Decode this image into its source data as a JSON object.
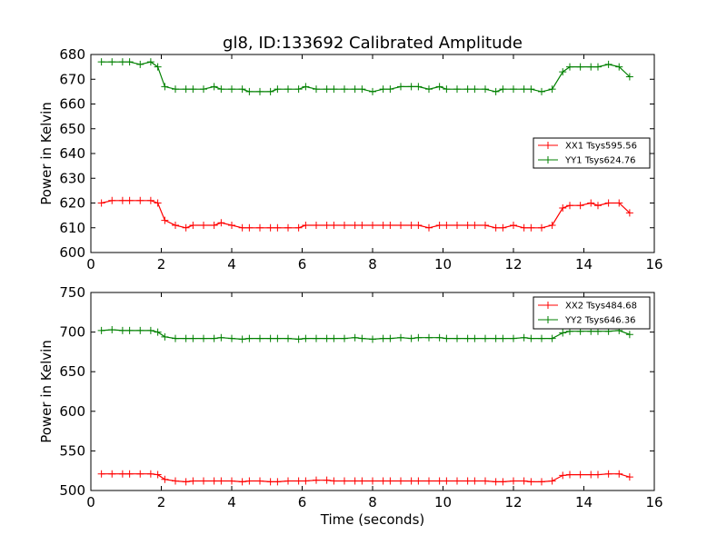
{
  "chart_data": [
    {
      "type": "line",
      "title": "gl8, ID:133692 Calibrated Amplitude",
      "xlabel": "",
      "ylabel": "Power in Kelvin",
      "xlim": [
        0,
        16
      ],
      "ylim": [
        600,
        680
      ],
      "xticks": [
        "0",
        "2",
        "4",
        "6",
        "8",
        "10",
        "12",
        "14",
        "16"
      ],
      "yticks": [
        "600",
        "610",
        "620",
        "630",
        "640",
        "650",
        "660",
        "670",
        "680"
      ],
      "legend_position": "center-right",
      "grid": false,
      "x": [
        0.3,
        0.6,
        0.9,
        1.1,
        1.4,
        1.7,
        1.9,
        2.1,
        2.4,
        2.7,
        2.9,
        3.2,
        3.5,
        3.7,
        4.0,
        4.3,
        4.5,
        4.8,
        5.1,
        5.3,
        5.6,
        5.9,
        6.1,
        6.4,
        6.7,
        6.9,
        7.2,
        7.5,
        7.7,
        8.0,
        8.3,
        8.5,
        8.8,
        9.1,
        9.3,
        9.6,
        9.9,
        10.1,
        10.4,
        10.7,
        10.9,
        11.2,
        11.5,
        11.7,
        12.0,
        12.3,
        12.5,
        12.8,
        13.1,
        13.4,
        13.6,
        13.9,
        14.2,
        14.4,
        14.7,
        15.0,
        15.3
      ],
      "series": [
        {
          "name": "XX1 Tsys595.56",
          "color": "#ff0000",
          "values": [
            620,
            621,
            621,
            621,
            621,
            621,
            620,
            613,
            611,
            610,
            611,
            611,
            611,
            612,
            611,
            610,
            610,
            610,
            610,
            610,
            610,
            610,
            611,
            611,
            611,
            611,
            611,
            611,
            611,
            611,
            611,
            611,
            611,
            611,
            611,
            610,
            611,
            611,
            611,
            611,
            611,
            611,
            610,
            610,
            611,
            610,
            610,
            610,
            611,
            618,
            619,
            619,
            620,
            619,
            620,
            620,
            616
          ]
        },
        {
          "name": "YY1 Tsys624.76",
          "color": "#008000",
          "values": [
            677,
            677,
            677,
            677,
            676,
            677,
            675,
            667,
            666,
            666,
            666,
            666,
            667,
            666,
            666,
            666,
            665,
            665,
            665,
            666,
            666,
            666,
            667,
            666,
            666,
            666,
            666,
            666,
            666,
            665,
            666,
            666,
            667,
            667,
            667,
            666,
            667,
            666,
            666,
            666,
            666,
            666,
            665,
            666,
            666,
            666,
            666,
            665,
            666,
            673,
            675,
            675,
            675,
            675,
            676,
            675,
            671
          ]
        }
      ]
    },
    {
      "type": "line",
      "title": "",
      "xlabel": "Time (seconds)",
      "ylabel": "Power in Kelvin",
      "xlim": [
        0,
        16
      ],
      "ylim": [
        500,
        750
      ],
      "xticks": [
        "0",
        "2",
        "4",
        "6",
        "8",
        "10",
        "12",
        "14",
        "16"
      ],
      "yticks": [
        "500",
        "550",
        "600",
        "650",
        "700",
        "750"
      ],
      "legend_position": "upper-right",
      "grid": false,
      "x": [
        0.3,
        0.6,
        0.9,
        1.1,
        1.4,
        1.7,
        1.9,
        2.1,
        2.4,
        2.7,
        2.9,
        3.2,
        3.5,
        3.7,
        4.0,
        4.3,
        4.5,
        4.8,
        5.1,
        5.3,
        5.6,
        5.9,
        6.1,
        6.4,
        6.7,
        6.9,
        7.2,
        7.5,
        7.7,
        8.0,
        8.3,
        8.5,
        8.8,
        9.1,
        9.3,
        9.6,
        9.9,
        10.1,
        10.4,
        10.7,
        10.9,
        11.2,
        11.5,
        11.7,
        12.0,
        12.3,
        12.5,
        12.8,
        13.1,
        13.4,
        13.6,
        13.9,
        14.2,
        14.4,
        14.7,
        15.0,
        15.3
      ],
      "series": [
        {
          "name": "XX2 Tsys484.68",
          "color": "#ff0000",
          "values": [
            521,
            521,
            521,
            521,
            521,
            521,
            520,
            514,
            512,
            511,
            512,
            512,
            512,
            512,
            512,
            511,
            512,
            512,
            511,
            511,
            512,
            512,
            512,
            513,
            513,
            512,
            512,
            512,
            512,
            512,
            512,
            512,
            512,
            512,
            512,
            512,
            512,
            512,
            512,
            512,
            512,
            512,
            511,
            511,
            512,
            512,
            511,
            511,
            512,
            519,
            520,
            520,
            520,
            520,
            521,
            521,
            517
          ]
        },
        {
          "name": "YY2 Tsys646.36",
          "color": "#008000",
          "values": [
            702,
            703,
            702,
            702,
            702,
            702,
            700,
            694,
            692,
            692,
            692,
            692,
            692,
            693,
            692,
            691,
            692,
            692,
            692,
            692,
            692,
            691,
            692,
            692,
            692,
            692,
            692,
            693,
            692,
            691,
            692,
            692,
            693,
            692,
            693,
            693,
            693,
            692,
            692,
            692,
            692,
            692,
            692,
            692,
            692,
            693,
            692,
            692,
            692,
            699,
            701,
            701,
            701,
            701,
            701,
            702,
            697
          ]
        }
      ]
    }
  ]
}
